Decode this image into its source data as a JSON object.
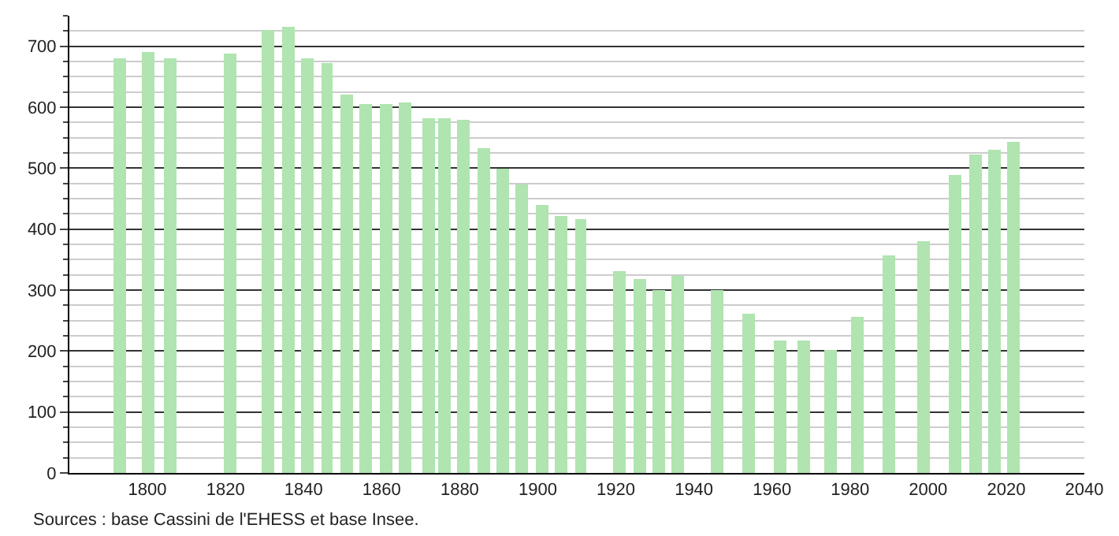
{
  "chart_data": {
    "type": "bar",
    "x": [
      1793,
      1800,
      1806,
      1821,
      1831,
      1836,
      1841,
      1846,
      1851,
      1856,
      1861,
      1866,
      1872,
      1876,
      1881,
      1886,
      1891,
      1896,
      1901,
      1906,
      1911,
      1921,
      1926,
      1931,
      1936,
      1946,
      1954,
      1962,
      1968,
      1975,
      1982,
      1990,
      1999,
      2007,
      2012,
      2017,
      2022
    ],
    "values": [
      680,
      691,
      680,
      688,
      726,
      732,
      680,
      673,
      621,
      605,
      605,
      608,
      582,
      582,
      579,
      532,
      500,
      474,
      439,
      421,
      416,
      330,
      317,
      301,
      324,
      301,
      260,
      216,
      218,
      203,
      257,
      356,
      379,
      488,
      522,
      530,
      543
    ],
    "color": "#b0e4b0",
    "xlim": [
      1780,
      2040
    ],
    "xticks": [
      1800,
      1820,
      1840,
      1860,
      1880,
      1900,
      1920,
      1940,
      1960,
      1980,
      2000,
      2020,
      2040
    ],
    "ylim": [
      0,
      750
    ],
    "yticks": [
      0,
      100,
      200,
      300,
      400,
      500,
      600,
      700
    ],
    "grid": "y",
    "annotations": [
      "Sources : base Cassini de l'EHESS et base Insee."
    ]
  }
}
